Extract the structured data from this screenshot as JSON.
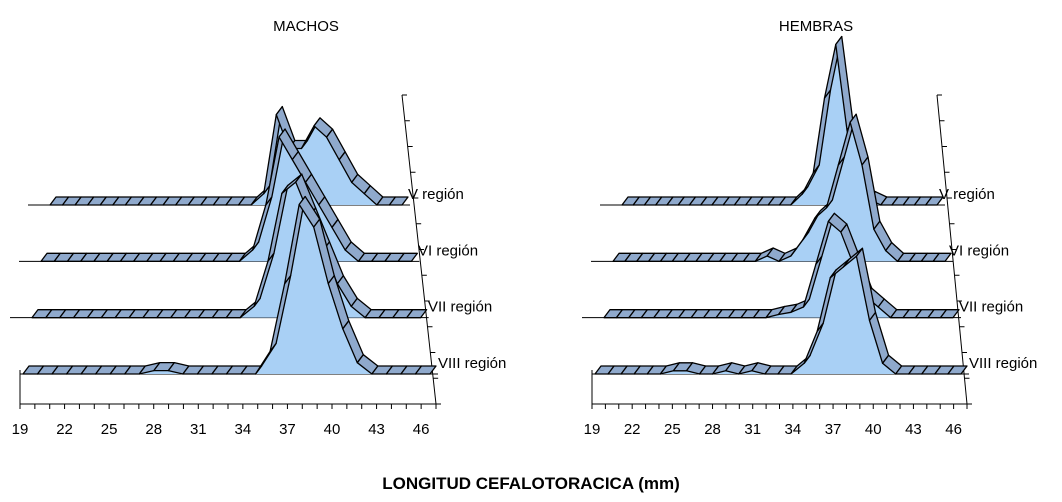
{
  "xlabel": "LONGITUD CEFALOTORACICA (mm)",
  "colors": {
    "fill": "#a9d0f5",
    "top": "#8fa9cc",
    "line": "#000000"
  },
  "chart_data": [
    {
      "type": "area",
      "title": "MACHOS",
      "x": [
        19,
        20,
        21,
        22,
        23,
        24,
        25,
        26,
        27,
        28,
        29,
        30,
        31,
        32,
        33,
        34,
        35,
        36,
        37,
        38,
        39,
        40,
        41,
        42,
        43,
        44,
        45,
        46,
        47
      ],
      "x_ticks": [
        19,
        22,
        25,
        28,
        31,
        34,
        37,
        40,
        43,
        46
      ],
      "series": [
        {
          "name": "V región",
          "values": [
            0,
            0,
            0,
            0,
            0,
            0,
            0,
            0,
            0,
            0,
            0,
            0,
            0,
            0,
            0,
            0,
            0,
            1,
            8,
            5,
            5,
            7,
            6,
            4,
            2,
            1,
            0,
            0,
            0
          ]
        },
        {
          "name": "VI región",
          "values": [
            0,
            0,
            0,
            0,
            0,
            0,
            0,
            0,
            0,
            0,
            0,
            0,
            0,
            0,
            0,
            0,
            1,
            5,
            11,
            9,
            7,
            5,
            3,
            1,
            0,
            0,
            0,
            0,
            0
          ]
        },
        {
          "name": "VII región",
          "values": [
            0,
            0,
            0,
            0,
            0,
            0,
            0,
            0,
            0,
            0,
            0,
            0,
            0,
            0,
            0,
            0,
            1,
            5,
            11,
            12,
            9,
            6,
            3,
            1,
            0,
            0,
            0,
            0,
            0
          ]
        },
        {
          "name": "VIII región",
          "values": [
            0,
            0,
            0,
            0,
            0,
            0,
            0,
            0,
            0,
            0.3,
            0.3,
            0,
            0,
            0,
            0,
            0,
            0,
            2,
            8,
            15,
            13,
            8,
            4,
            1,
            0,
            0,
            0,
            0,
            0
          ]
        }
      ]
    },
    {
      "type": "area",
      "title": "HEMBRAS",
      "x": [
        19,
        20,
        21,
        22,
        23,
        24,
        25,
        26,
        27,
        28,
        29,
        30,
        31,
        32,
        33,
        34,
        35,
        36,
        37,
        38,
        39,
        40,
        41,
        42,
        43,
        44,
        45,
        46,
        47
      ],
      "x_ticks": [
        19,
        22,
        25,
        28,
        31,
        34,
        37,
        40,
        43,
        46
      ],
      "series": [
        {
          "name": "V región",
          "values": [
            0,
            0,
            0,
            0,
            0,
            0,
            0,
            0,
            0,
            0,
            0,
            0,
            0,
            0,
            0,
            0,
            1,
            3,
            10,
            15,
            7,
            1,
            0.5,
            0,
            0,
            0,
            0,
            0,
            0
          ]
        },
        {
          "name": "VI región",
          "values": [
            0,
            0,
            0,
            0,
            0,
            0,
            0,
            0,
            0,
            0,
            0,
            0,
            0,
            0.5,
            0,
            0.5,
            2,
            4,
            5,
            9,
            13,
            9,
            3,
            1,
            0,
            0,
            0,
            0,
            0
          ]
        },
        {
          "name": "VII región",
          "values": [
            0,
            0,
            0,
            0,
            0,
            0,
            0,
            0,
            0,
            0,
            0,
            0,
            0,
            0,
            0.3,
            0.5,
            1,
            5,
            9,
            8,
            5,
            2,
            1,
            0,
            0,
            0,
            0,
            0,
            0
          ]
        },
        {
          "name": "VIII región",
          "values": [
            0,
            0,
            0,
            0,
            0,
            0,
            0.3,
            0.3,
            0,
            0,
            0.3,
            0,
            0.3,
            0,
            0,
            0,
            1,
            4,
            9,
            10,
            11,
            5,
            1,
            0,
            0,
            0,
            0,
            0,
            0
          ]
        }
      ]
    }
  ]
}
